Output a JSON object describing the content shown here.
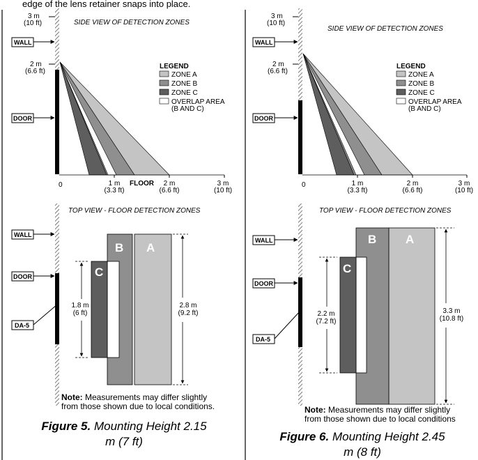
{
  "top_text": "edge of the lens retainer snaps into place.",
  "colors": {
    "zone_a": "#c4c4c4",
    "zone_b": "#8f8f8f",
    "zone_c": "#5e5e5e",
    "overlap": "#ffffff",
    "door": "#000000"
  },
  "figures": [
    {
      "side_title": "SIDE VIEW OF DETECTION ZONES",
      "height_3m": "3 m",
      "height_3m_ft": "(10 ft)",
      "height_2m": "2 m",
      "height_2m_ft": "(6.6 ft)",
      "wall_label": "WALL",
      "door_label": "DOOR",
      "legend": {
        "title": "LEGEND",
        "zone_a": "ZONE A",
        "zone_b": "ZONE B",
        "zone_c": "ZONE C",
        "overlap_1": "OVERLAP AREA",
        "overlap_2": "(B AND C)"
      },
      "axis_zero": "0",
      "axis_1m": "1 m",
      "axis_1m_ft": "(3.3 ft)",
      "floor_label": "FLOOR",
      "axis_2m": "2 m",
      "axis_2m_ft": "(6.6 ft)",
      "axis_3m": "3 m",
      "axis_3m_ft": "(10 ft)",
      "top_title": "TOP VIEW - FLOOR DETECTION ZONES",
      "top_wall_label": "WALL",
      "top_door_label": "DOOR",
      "sensor_label": "DA-5",
      "zone_a_letter": "A",
      "zone_b_letter": "B",
      "zone_c_letter": "C",
      "dim_c_m": "1.8 m",
      "dim_c_ft": "(6 ft)",
      "dim_ab_m": "2.8 m",
      "dim_ab_ft": "(9.2 ft)",
      "note_bold": "Note:",
      "note_text": " Measurements may differ slightly",
      "note_text_2": "from those shown due to local conditions.",
      "caption_bold": "Figure 5.",
      "caption_text": " Mounting Height 2.15",
      "caption_text_2": "m (7 ft)"
    },
    {
      "side_title": "SIDE VIEW OF DETECTION ZONES",
      "height_3m": "3 m",
      "height_3m_ft": "(10 ft)",
      "height_2m": "2 m",
      "height_2m_ft": "(6.6 ft)",
      "wall_label": "WALL",
      "door_label": "DOOR",
      "legend": {
        "title": "LEGEND",
        "zone_a": "ZONE A",
        "zone_b": "ZONE B",
        "zone_c": "ZONE C",
        "overlap_1": "OVERLAP AREA",
        "overlap_2": "(B AND C)"
      },
      "axis_zero": "0",
      "axis_1m": "1 m",
      "axis_1m_ft": "(3.3 ft)",
      "axis_2m": "2 m",
      "axis_2m_ft": "(6.6 ft)",
      "axis_3m": "3 m",
      "axis_3m_ft": "(10 ft)",
      "top_title": "TOP VIEW - FLOOR DETECTION ZONES",
      "top_wall_label": "WALL",
      "top_door_label": "DOOR",
      "sensor_label": "DA-5",
      "zone_a_letter": "A",
      "zone_b_letter": "B",
      "zone_c_letter": "C",
      "dim_c_m": "2.2 m",
      "dim_c_ft": "(7.2 ft)",
      "dim_ab_m": "3.3 m",
      "dim_ab_ft": "(10.8 ft)",
      "note_bold": "Note:",
      "note_text": " Measurements may differ slightly",
      "note_text_2": "from those shown due to local conditions",
      "caption_bold": "Figure 6.",
      "caption_text": " Mounting Height 2.45",
      "caption_text_2": "m (8 ft)"
    }
  ]
}
